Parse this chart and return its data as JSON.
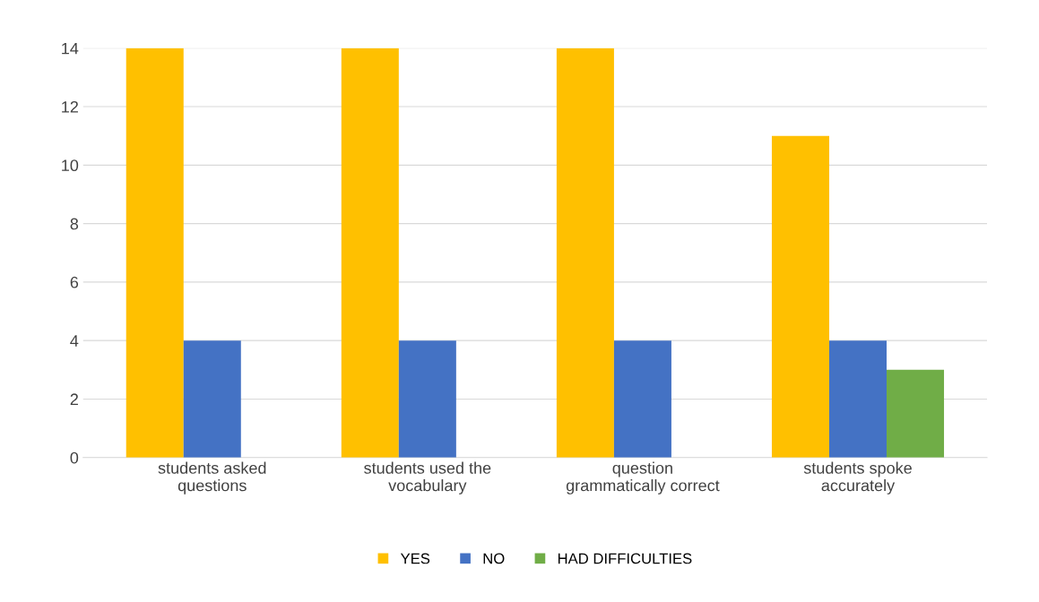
{
  "chart_data": {
    "type": "bar",
    "categories": [
      "students asked\nquestions",
      "students used the\nvocabulary",
      "question\ngrammatically correct",
      "students spoke\naccurately"
    ],
    "series": [
      {
        "name": "YES",
        "color": "#ffc000",
        "values": [
          14,
          14,
          14,
          11
        ]
      },
      {
        "name": "NO",
        "color": "#4472c4",
        "values": [
          4,
          4,
          4,
          4
        ]
      },
      {
        "name": "HAD DIFFICULTIES",
        "color": "#70ad47",
        "values": [
          null,
          null,
          null,
          3
        ]
      }
    ],
    "ylim": [
      0,
      14
    ],
    "yticks": [
      0,
      2,
      4,
      6,
      8,
      10,
      12,
      14
    ],
    "grid": "y",
    "legend": "bottom"
  }
}
